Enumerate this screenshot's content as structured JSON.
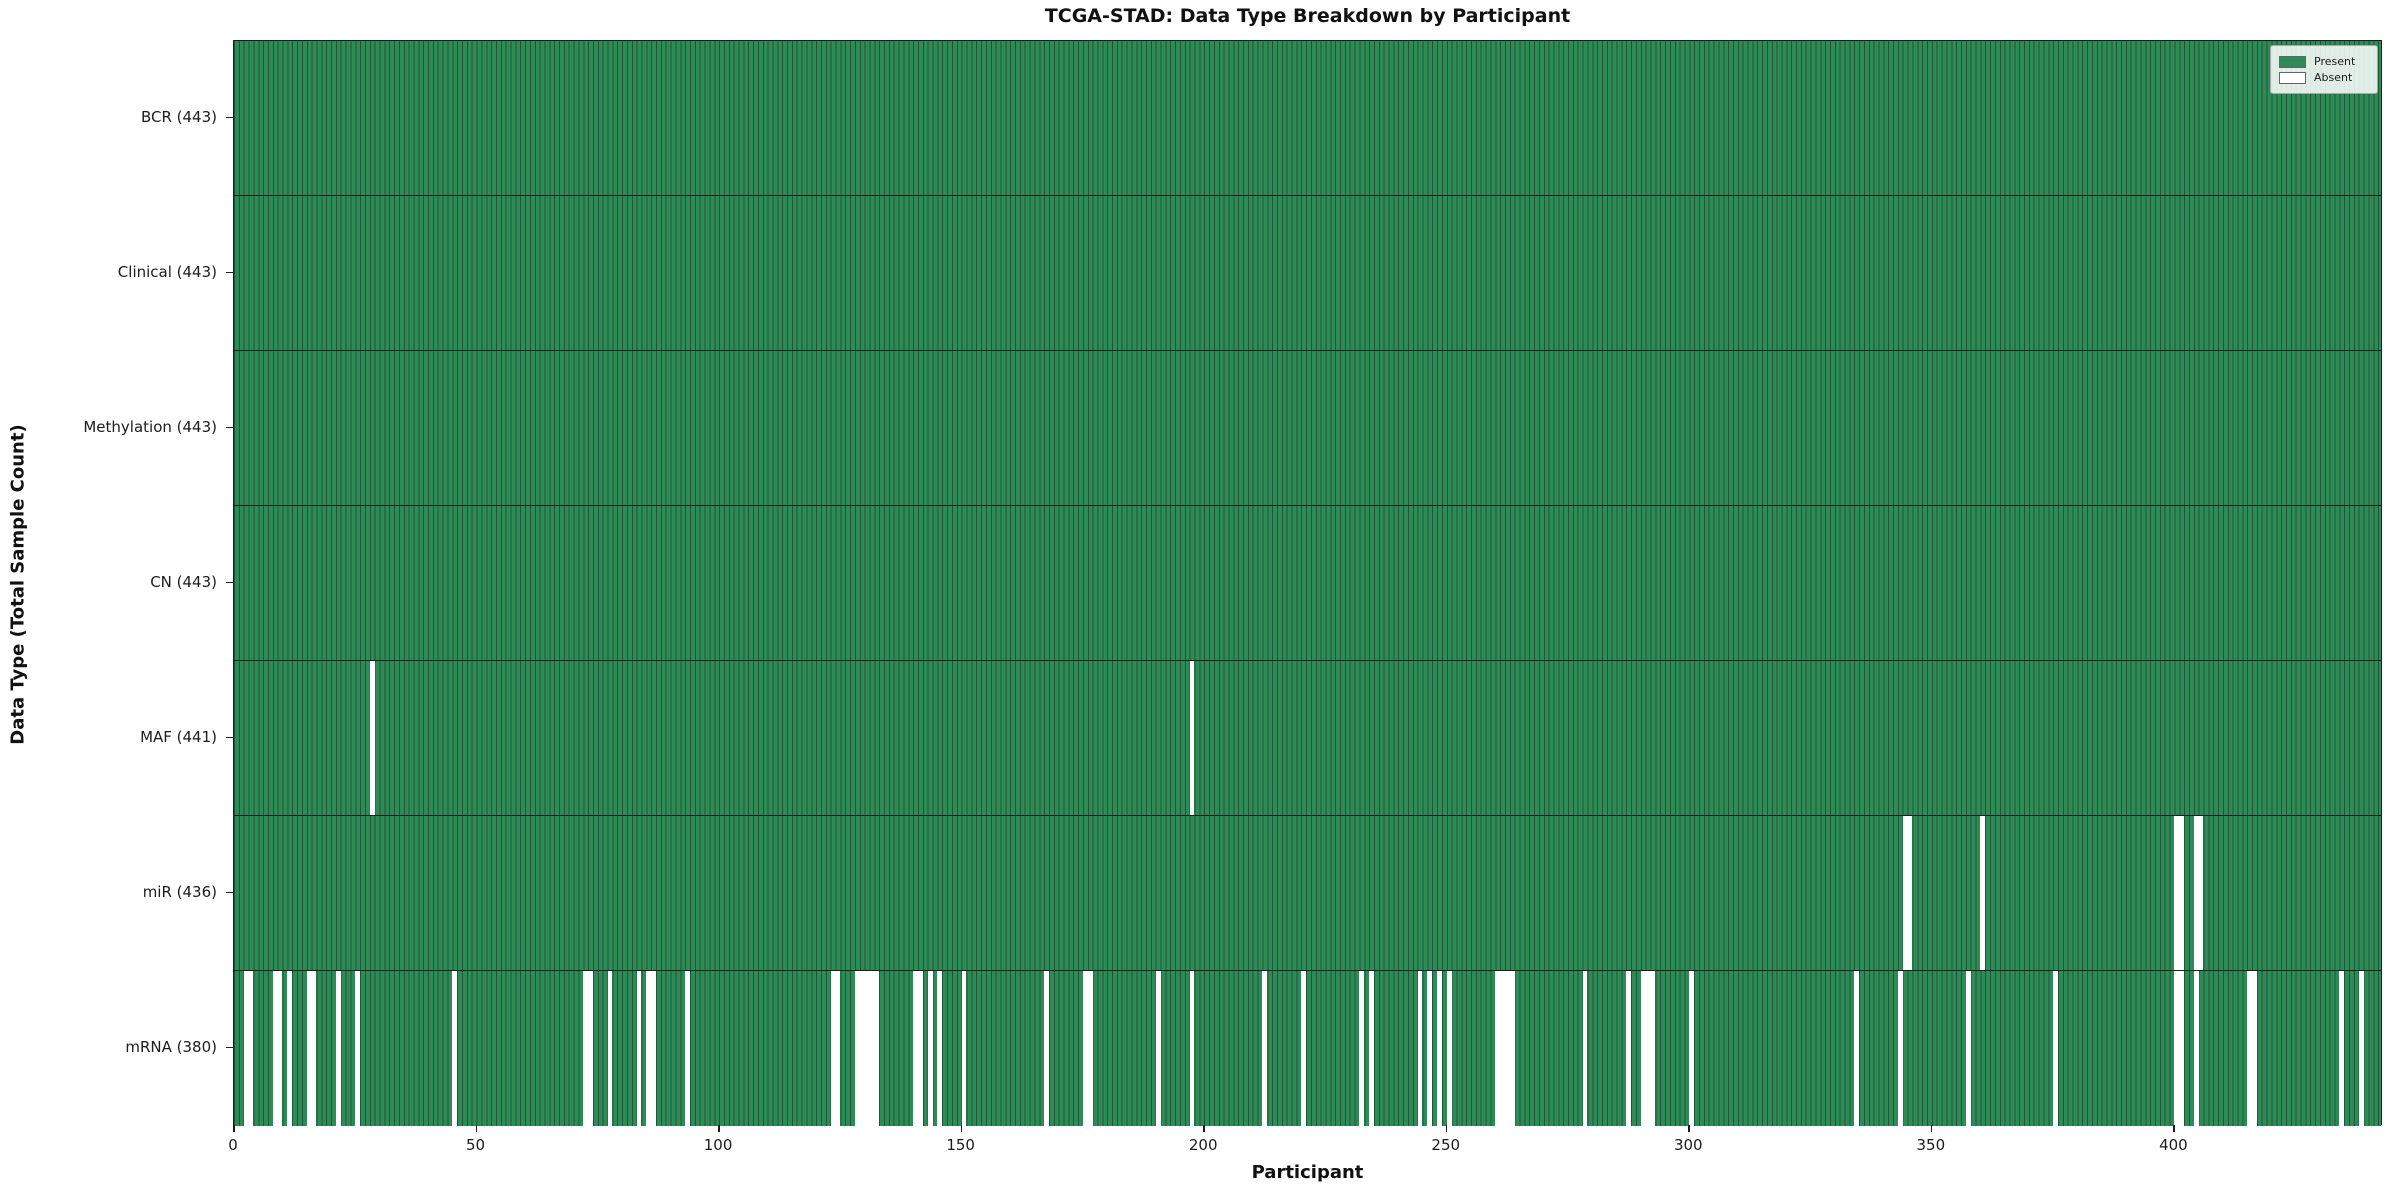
{
  "title": "TCGA-STAD: Data Type Breakdown by Participant",
  "chart_data": {
    "type": "heatmap",
    "title": "TCGA-STAD: Data Type Breakdown by Participant",
    "xlabel": "Participant",
    "ylabel": "Data Type (Total Sample Count)",
    "x_ticks": [
      0,
      50,
      100,
      150,
      200,
      250,
      300,
      350,
      400
    ],
    "x_range": [
      0,
      443
    ],
    "n_participants": 443,
    "grid": false,
    "legend_position": "upper right",
    "legend": [
      {
        "label": "Present",
        "color": "#2e8b57"
      },
      {
        "label": "Absent",
        "color": "#ffffff"
      }
    ],
    "colors": {
      "present_fill": "#2e8b57",
      "bar_edge": "#1d5836",
      "absent_fill": "#ffffff",
      "row_divider": "#14221a",
      "axis_color": "#1c1c1c"
    },
    "rows": [
      {
        "name": "bcr",
        "label": "BCR (443)",
        "count": 443,
        "absent": []
      },
      {
        "name": "clinical",
        "label": "Clinical (443)",
        "count": 443,
        "absent": []
      },
      {
        "name": "methylation",
        "label": "Methylation (443)",
        "count": 443,
        "absent": []
      },
      {
        "name": "cn",
        "label": "CN (443)",
        "count": 443,
        "absent": []
      },
      {
        "name": "maf",
        "label": "MAF (441)",
        "count": 441,
        "absent": [
          28,
          197
        ]
      },
      {
        "name": "mir",
        "label": "miR (436)",
        "count": 436,
        "absent": [
          344,
          345,
          360,
          400,
          401,
          404,
          405
        ]
      },
      {
        "name": "mrna",
        "label": "mRNA (380)",
        "count": 380,
        "absent": [
          2,
          3,
          8,
          9,
          11,
          15,
          16,
          21,
          25,
          45,
          72,
          73,
          77,
          83,
          85,
          86,
          93,
          123,
          124,
          128,
          129,
          130,
          131,
          132,
          140,
          141,
          143,
          145,
          150,
          167,
          175,
          176,
          190,
          197,
          212,
          220,
          232,
          234,
          244,
          246,
          248,
          250,
          260,
          261,
          262,
          263,
          278,
          287,
          290,
          291,
          292,
          300,
          334,
          343,
          357,
          375,
          400,
          401,
          404,
          415,
          416,
          434,
          438
        ]
      }
    ]
  }
}
